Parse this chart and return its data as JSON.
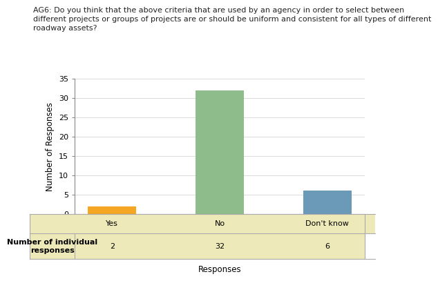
{
  "categories": [
    "Yes",
    "No",
    "Don't know"
  ],
  "values": [
    2,
    32,
    6
  ],
  "bar_colors": [
    "#F5A623",
    "#8FBC8B",
    "#6B9AB8"
  ],
  "ylim": [
    0,
    35
  ],
  "yticks": [
    0,
    5,
    10,
    15,
    20,
    25,
    30,
    35
  ],
  "ylabel": "Number of Responses",
  "xlabel": "Responses",
  "table_label": "Number of individual\nresponses",
  "table_values": [
    "2",
    "32",
    "6"
  ],
  "table_bg_color": "#EDE9B8",
  "table_header_bg": "#EDE9B8",
  "question_text": "AG6: Do you think that the above criteria that are used by an agency in order to select between\ndifferent projects or groups of projects are or should be uniform and consistent for all types of different\nroadway assets?",
  "question_fontsize": 8.0,
  "axis_label_fontsize": 8.5,
  "tick_fontsize": 8.0,
  "table_fontsize": 8.0,
  "bar_width": 0.45,
  "background_color": "#FFFFFF",
  "grid_color": "#CCCCCC",
  "spine_color": "#888888"
}
